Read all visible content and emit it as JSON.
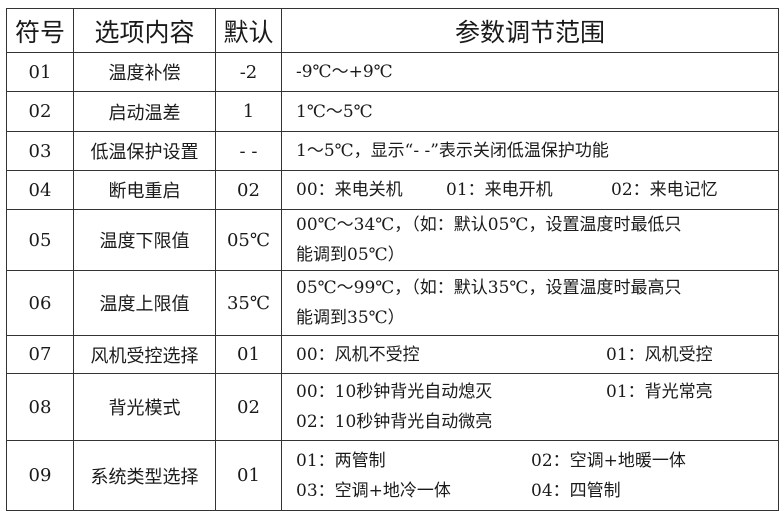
{
  "headers": {
    "code": "符号",
    "item": "选项内容",
    "default": "默认",
    "range": "参数调节范围"
  },
  "rows": [
    {
      "code": "01",
      "item": "温度补偿",
      "default": "-2",
      "lines": [
        [
          "-9℃～+9℃"
        ]
      ]
    },
    {
      "code": "02",
      "item": "启动温差",
      "default": "1",
      "lines": [
        [
          "1℃～5℃"
        ]
      ]
    },
    {
      "code": "03",
      "item": "低温保护设置",
      "default": "- -",
      "lines": [
        [
          "1～5℃，显示“- -”表示关闭低温保护功能"
        ]
      ]
    },
    {
      "code": "04",
      "item": "断电重启",
      "default": "02",
      "lines": [
        [
          "00：来电关机",
          "01：来电开机",
          "02：来电记忆"
        ]
      ]
    },
    {
      "code": "05",
      "item": "温度下限值",
      "default": "05℃",
      "lines": [
        [
          "00℃～34℃，（如：默认05℃，设置温度时最低只"
        ],
        [
          "能调到05℃）"
        ]
      ]
    },
    {
      "code": "06",
      "item": "温度上限值",
      "default": "35℃",
      "lines": [
        [
          "05℃～99℃，（如：默认35℃，设置温度时最高只"
        ],
        [
          "能调到35℃）"
        ]
      ]
    },
    {
      "code": "07",
      "item": "风机受控选择",
      "default": "01",
      "lines": [
        [
          "00：风机不受控",
          "01：风机受控"
        ]
      ]
    },
    {
      "code": "08",
      "item": "背光模式",
      "default": "02",
      "lines": [
        [
          "00：10秒钟背光自动熄灭",
          "01：背光常亮"
        ],
        [
          "02：10秒钟背光自动微亮"
        ]
      ]
    },
    {
      "code": "09",
      "item": "系统类型选择",
      "default": "01",
      "lines": [
        [
          "01：两管制",
          "02：空调+地暖一体"
        ],
        [
          "03：空调+地冷一体",
          "04：四管制"
        ]
      ]
    }
  ]
}
